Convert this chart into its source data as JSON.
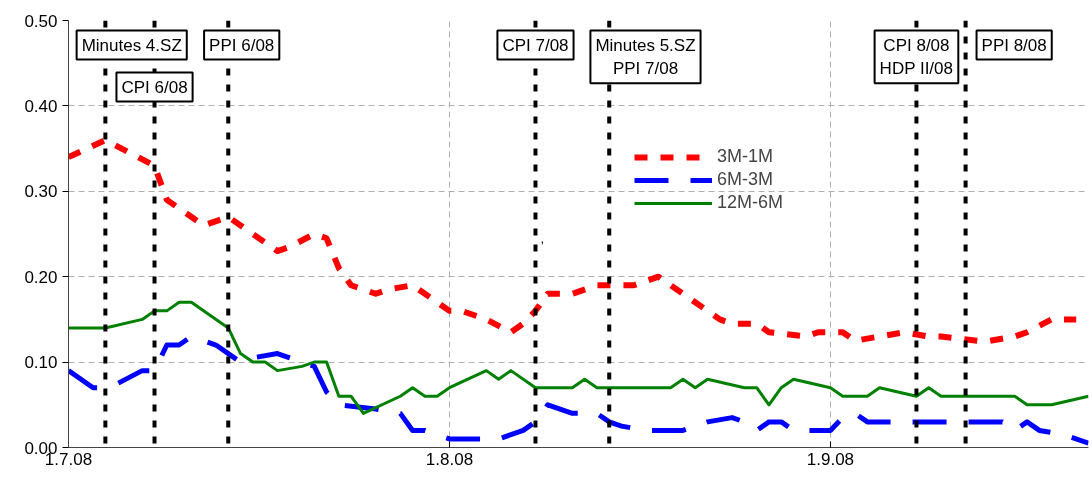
{
  "chart_data": {
    "type": "line",
    "xlim": [
      "2008-07-01",
      "2008-09-22"
    ],
    "xticks": [
      {
        "value": "2008-07-01",
        "label": "1.7.08"
      },
      {
        "value": "2008-08-01",
        "label": "1.8.08"
      },
      {
        "value": "2008-09-01",
        "label": "1.9.08"
      }
    ],
    "ylim": [
      0,
      0.5
    ],
    "yticks": [
      {
        "value": 0,
        "label": "0.00"
      },
      {
        "value": 0.1,
        "label": "0.10"
      },
      {
        "value": 0.2,
        "label": "0.20"
      },
      {
        "value": 0.3,
        "label": "0.30"
      },
      {
        "value": 0.4,
        "label": "0.40"
      },
      {
        "value": 0.5,
        "label": "0.50"
      }
    ],
    "grid": true,
    "legend": "top right",
    "series": [
      {
        "name": "3M-1M",
        "color": "#ff0000",
        "line_style": "dotted",
        "x": [
          "2008-07-01",
          "2008-07-04",
          "2008-07-08",
          "2008-07-09",
          "2008-07-10",
          "2008-07-12",
          "2008-07-14",
          "2008-07-16",
          "2008-07-18",
          "2008-07-19",
          "2008-07-21",
          "2008-07-22",
          "2008-07-23",
          "2008-07-24",
          "2008-07-26",
          "2008-07-27",
          "2008-07-29",
          "2008-07-30",
          "2008-08-01",
          "2008-08-02",
          "2008-08-04",
          "2008-08-06",
          "2008-08-07",
          "2008-08-08",
          "2008-08-09",
          "2008-08-11",
          "2008-08-13",
          "2008-08-14",
          "2008-08-16",
          "2008-08-18",
          "2008-08-20",
          "2008-08-21",
          "2008-08-23",
          "2008-08-24",
          "2008-08-26",
          "2008-08-27",
          "2008-08-30",
          "2008-08-31",
          "2008-09-02",
          "2008-09-03",
          "2008-09-05",
          "2008-09-07",
          "2008-09-09",
          "2008-09-10",
          "2008-09-13",
          "2008-09-14",
          "2008-09-16",
          "2008-09-17",
          "2008-09-19",
          "2008-09-21"
        ],
        "values": [
          0.34,
          0.36,
          0.33,
          0.29,
          0.28,
          0.26,
          0.27,
          0.25,
          0.23,
          0.235,
          0.25,
          0.245,
          0.21,
          0.19,
          0.18,
          0.185,
          0.19,
          0.18,
          0.16,
          0.16,
          0.15,
          0.135,
          0.145,
          0.16,
          0.18,
          0.18,
          0.19,
          0.19,
          0.19,
          0.2,
          0.18,
          0.17,
          0.15,
          0.145,
          0.145,
          0.135,
          0.13,
          0.135,
          0.135,
          0.125,
          0.13,
          0.135,
          0.13,
          0.13,
          0.125,
          0.125,
          0.13,
          0.135,
          0.15,
          0.15
        ]
      },
      {
        "name": "6M-3M",
        "color": "#0000ff",
        "line_style": "dashed",
        "x": [
          "2008-07-01",
          "2008-07-03",
          "2008-07-04",
          "2008-07-05",
          "2008-07-07",
          "2008-07-08",
          "2008-07-09",
          "2008-07-10",
          "2008-07-11",
          "2008-07-13",
          "2008-07-15",
          "2008-07-16",
          "2008-07-18",
          "2008-07-19",
          "2008-07-21",
          "2008-07-22",
          "2008-07-23",
          "2008-07-26",
          "2008-07-28",
          "2008-07-29",
          "2008-07-30",
          "2008-08-01",
          "2008-08-05",
          "2008-08-07",
          "2008-08-08",
          "2008-08-09",
          "2008-08-11",
          "2008-08-13",
          "2008-08-14",
          "2008-08-15",
          "2008-08-17",
          "2008-08-20",
          "2008-08-21",
          "2008-08-22",
          "2008-08-24",
          "2008-08-25",
          "2008-08-26",
          "2008-08-27",
          "2008-08-28",
          "2008-08-29",
          "2008-09-01",
          "2008-09-02",
          "2008-09-03",
          "2008-09-04",
          "2008-09-05",
          "2008-09-07",
          "2008-09-15",
          "2008-09-16",
          "2008-09-17",
          "2008-09-18",
          "2008-09-20",
          "2008-09-22"
        ],
        "values": [
          0.09,
          0.07,
          0.07,
          0.075,
          0.09,
          0.09,
          0.12,
          0.12,
          0.13,
          0.12,
          0.1,
          0.105,
          0.11,
          0.105,
          0.095,
          0.065,
          0.05,
          0.045,
          0.04,
          0.02,
          0.02,
          0.01,
          0.01,
          0.02,
          0.03,
          0.05,
          0.04,
          0.04,
          0.03,
          0.025,
          0.02,
          0.02,
          0.025,
          0.03,
          0.035,
          0.03,
          0.02,
          0.03,
          0.03,
          0.02,
          0.02,
          0.035,
          0.04,
          0.03,
          0.03,
          0.03,
          0.03,
          0.02,
          0.03,
          0.02,
          0.015,
          0.005
        ]
      },
      {
        "name": "12M-6M",
        "color": "#008000",
        "line_style": "solid",
        "x": [
          "2008-07-01",
          "2008-07-04",
          "2008-07-07",
          "2008-07-08",
          "2008-07-09",
          "2008-07-10",
          "2008-07-11",
          "2008-07-14",
          "2008-07-15",
          "2008-07-16",
          "2008-07-17",
          "2008-07-18",
          "2008-07-20",
          "2008-07-21",
          "2008-07-22",
          "2008-07-23",
          "2008-07-24",
          "2008-07-25",
          "2008-07-28",
          "2008-07-29",
          "2008-07-30",
          "2008-07-31",
          "2008-08-01",
          "2008-08-04",
          "2008-08-05",
          "2008-08-06",
          "2008-08-08",
          "2008-08-11",
          "2008-08-12",
          "2008-08-13",
          "2008-08-19",
          "2008-08-20",
          "2008-08-21",
          "2008-08-22",
          "2008-08-25",
          "2008-08-26",
          "2008-08-27",
          "2008-08-28",
          "2008-08-29",
          "2008-09-01",
          "2008-09-02",
          "2008-09-04",
          "2008-09-05",
          "2008-09-08",
          "2008-09-09",
          "2008-09-10",
          "2008-09-16",
          "2008-09-17",
          "2008-09-19",
          "2008-09-22"
        ],
        "values": [
          0.14,
          0.14,
          0.15,
          0.16,
          0.16,
          0.17,
          0.17,
          0.14,
          0.11,
          0.1,
          0.1,
          0.09,
          0.095,
          0.1,
          0.1,
          0.06,
          0.06,
          0.04,
          0.06,
          0.07,
          0.06,
          0.06,
          0.07,
          0.09,
          0.08,
          0.09,
          0.07,
          0.07,
          0.08,
          0.07,
          0.07,
          0.08,
          0.07,
          0.08,
          0.07,
          0.07,
          0.05,
          0.07,
          0.08,
          0.07,
          0.06,
          0.06,
          0.07,
          0.06,
          0.07,
          0.06,
          0.06,
          0.05,
          0.05,
          0.06
        ]
      }
    ],
    "ref_lines": [
      {
        "axis": "x",
        "value": "2008-07-04",
        "label": "Minutes 4.SZ",
        "color": "#000000",
        "line_style": "dotted"
      },
      {
        "axis": "x",
        "value": "2008-07-08",
        "label": "CPI 6/08",
        "color": "#000000",
        "line_style": "dotted"
      },
      {
        "axis": "x",
        "value": "2008-07-14",
        "label": "PPI 6/08",
        "color": "#000000",
        "line_style": "dotted"
      },
      {
        "axis": "x",
        "value": "2008-08-08",
        "label": "CPI 7/08",
        "color": "#000000",
        "line_style": "dotted"
      },
      {
        "axis": "x",
        "value": "2008-08-14",
        "label": "Minutes 5.SZ\nPPI 7/08",
        "color": "#000000",
        "line_style": "dotted"
      },
      {
        "axis": "x",
        "value": "2008-09-08",
        "label": "CPI 8/08\nHDP II/08",
        "color": "#000000",
        "line_style": "dotted"
      },
      {
        "axis": "x",
        "value": "2008-09-12",
        "label": "PPI 8/08",
        "color": "#000000",
        "line_style": "dotted"
      }
    ],
    "annotations": [
      {
        "text": ",",
        "x": "2008-08-08",
        "y": 0.24
      }
    ]
  }
}
